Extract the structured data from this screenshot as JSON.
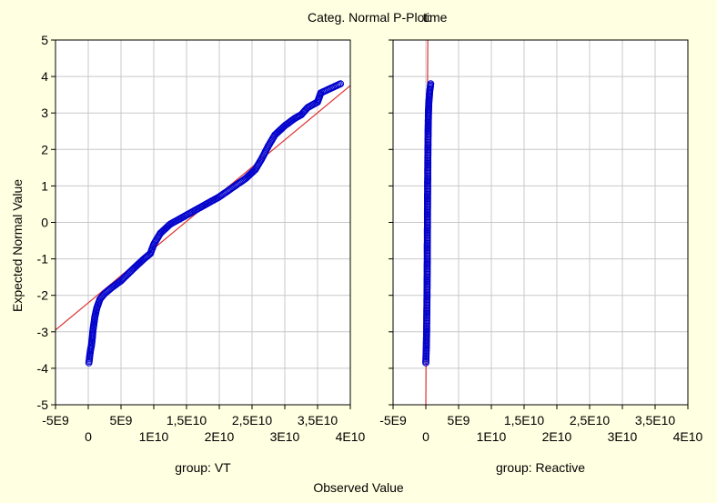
{
  "chart_data": {
    "type": "scatter",
    "title_main": "Categ. Normal P-Plot:",
    "title_var": "time",
    "xlabel": "Observed Value",
    "ylabel": "Expected Normal Value",
    "ylim": [
      -5,
      5
    ],
    "yticks": [
      "5",
      "4",
      "3",
      "2",
      "1",
      "0",
      "-1",
      "-2",
      "-3",
      "-4",
      "-5"
    ],
    "xlim": [
      -5000000000,
      40000000000
    ],
    "xticks_upper": [
      "-5E9",
      "5E9",
      "1,5E10",
      "2,5E10",
      "3,5E10"
    ],
    "xticks_lower": [
      "0",
      "1E10",
      "2E10",
      "3E10",
      "4E10"
    ],
    "grid": true,
    "colors": {
      "marker": "#0000CC",
      "fit_line": "#E03030",
      "background": "#FFFFE1",
      "plot_area": "#FFFFFF",
      "grid": "#C8C8C8"
    },
    "panels": [
      {
        "label": "group: VT",
        "fit_line": [
          [
            -5000000000,
            -2.95
          ],
          [
            40000000000,
            3.75
          ]
        ],
        "points": [
          [
            100000000,
            -3.85
          ],
          [
            300000000,
            -3.55
          ],
          [
            400000000,
            -3.45
          ],
          [
            500000000,
            -3.35
          ],
          [
            600000000,
            -3.2
          ],
          [
            700000000,
            -3.0
          ],
          [
            800000000,
            -2.85
          ],
          [
            1000000000,
            -2.6
          ],
          [
            1300000000,
            -2.35
          ],
          [
            1800000000,
            -2.1
          ],
          [
            2500000000,
            -1.95
          ],
          [
            3500000000,
            -1.8
          ],
          [
            5000000000,
            -1.6
          ],
          [
            7000000000,
            -1.25
          ],
          [
            8500000000,
            -1.0
          ],
          [
            9500000000,
            -0.85
          ],
          [
            10000000000,
            -0.6
          ],
          [
            11000000000,
            -0.3
          ],
          [
            12500000000,
            -0.05
          ],
          [
            14500000000,
            0.15
          ],
          [
            16000000000,
            0.3
          ],
          [
            18000000000,
            0.5
          ],
          [
            20000000000,
            0.7
          ],
          [
            22000000000,
            0.95
          ],
          [
            24000000000,
            1.2
          ],
          [
            25500000000,
            1.45
          ],
          [
            26500000000,
            1.75
          ],
          [
            27500000000,
            2.1
          ],
          [
            28500000000,
            2.4
          ],
          [
            30000000000,
            2.65
          ],
          [
            31500000000,
            2.85
          ],
          [
            32500000000,
            2.95
          ],
          [
            33500000000,
            3.15
          ],
          [
            35000000000,
            3.3
          ],
          [
            35300000000,
            3.45
          ],
          [
            35500000000,
            3.55
          ],
          [
            38500000000,
            3.8
          ]
        ]
      },
      {
        "label": "group: Reactive",
        "fit_line": [
          [
            0,
            -5
          ],
          [
            300000000,
            5
          ]
        ],
        "points": [
          [
            0,
            -3.85
          ],
          [
            50000000,
            -3.55
          ],
          [
            80000000,
            -3.4
          ],
          [
            100000000,
            -3.2
          ],
          [
            120000000,
            -3.0
          ],
          [
            150000000,
            -2.5
          ],
          [
            180000000,
            -2.0
          ],
          [
            200000000,
            -1.5
          ],
          [
            220000000,
            -1.0
          ],
          [
            230000000,
            -0.5
          ],
          [
            250000000,
            0.0
          ],
          [
            260000000,
            0.5
          ],
          [
            280000000,
            1.0
          ],
          [
            300000000,
            1.5
          ],
          [
            320000000,
            2.0
          ],
          [
            350000000,
            2.5
          ],
          [
            380000000,
            2.8
          ],
          [
            400000000,
            3.0
          ],
          [
            450000000,
            3.25
          ],
          [
            550000000,
            3.5
          ],
          [
            600000000,
            3.6
          ],
          [
            750000000,
            3.8
          ]
        ]
      }
    ]
  }
}
